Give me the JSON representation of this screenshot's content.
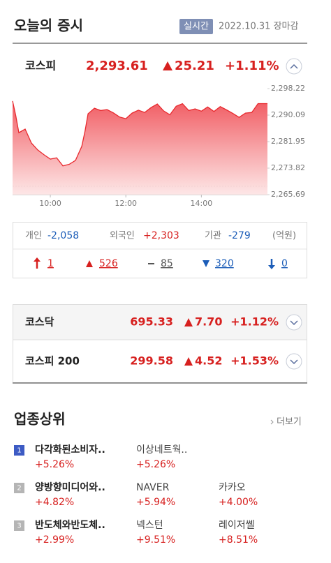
{
  "header": {
    "title": "오늘의 증시",
    "badge": "실시간",
    "date": "2022.10.31 장마감"
  },
  "kospi": {
    "name": "코스피",
    "price": "2,293.61",
    "change": "25.21",
    "rate": "+1.11%"
  },
  "chart_data": {
    "type": "line",
    "color": "#e8292e",
    "x": [
      "09:00",
      "09:05",
      "09:10",
      "09:20",
      "09:30",
      "09:40",
      "09:50",
      "10:00",
      "10:10",
      "10:20",
      "10:30",
      "10:40",
      "10:50",
      "10:55",
      "11:00",
      "11:10",
      "11:20",
      "11:30",
      "11:40",
      "11:50",
      "12:00",
      "12:10",
      "12:20",
      "12:30",
      "12:40",
      "12:50",
      "13:00",
      "13:10",
      "13:20",
      "13:30",
      "13:40",
      "13:50",
      "14:00",
      "14:10",
      "14:20",
      "14:30",
      "14:40",
      "14:50",
      "15:00",
      "15:10",
      "15:20",
      "15:30",
      "15:45"
    ],
    "values": [
      2294.4,
      2290.0,
      2284.7,
      2285.8,
      2281.5,
      2279.4,
      2277.9,
      2276.6,
      2277.0,
      2274.5,
      2275.0,
      2276.2,
      2280.5,
      2285.0,
      2290.5,
      2292.2,
      2291.5,
      2291.8,
      2290.8,
      2289.5,
      2289.0,
      2290.7,
      2291.6,
      2290.9,
      2292.4,
      2293.5,
      2291.4,
      2290.2,
      2292.8,
      2293.6,
      2291.5,
      2292.0,
      2291.3,
      2292.6,
      2291.2,
      2292.7,
      2291.7,
      2290.6,
      2289.4,
      2290.7,
      2290.9,
      2293.61,
      2293.61
    ],
    "xlim": [
      "09:00",
      "15:45"
    ],
    "xticks": [
      "10:00",
      "12:00",
      "14:00"
    ],
    "ylim": [
      2265.69,
      2298.22
    ],
    "yticks": [
      {
        "value": 2265.69,
        "label": "2,265.69"
      },
      {
        "value": 2273.82,
        "label": "2,273.82"
      },
      {
        "value": 2281.95,
        "label": "2,281.95"
      },
      {
        "value": 2290.09,
        "label": "2,290.09"
      },
      {
        "value": 2298.22,
        "label": "2,298.22"
      }
    ]
  },
  "investors": {
    "items": [
      {
        "label": "개인",
        "value": "-2,058"
      },
      {
        "label": "외국인",
        "value": "+2,303"
      },
      {
        "label": "기관",
        "value": "-279"
      }
    ],
    "unit": "(억원)"
  },
  "breadth": [
    "1",
    "526",
    "85",
    "320",
    "0"
  ],
  "indices": [
    {
      "name": "코스닥",
      "price": "695.33",
      "change": "7.70",
      "rate": "+1.12%"
    },
    {
      "name": "코스피 200",
      "price": "299.58",
      "change": "4.52",
      "rate": "+1.53%"
    }
  ],
  "sectors": {
    "title": "업종상위",
    "more": "더보기",
    "rows": [
      {
        "rank": 1,
        "name": "다각화된소비자..",
        "rate": "+5.26%",
        "stocks": [
          {
            "name": "이상네트웍..",
            "rate": "+5.26%"
          }
        ]
      },
      {
        "rank": 2,
        "name": "양방향미디어와..",
        "rate": "+4.82%",
        "stocks": [
          {
            "name": "NAVER",
            "rate": "+5.94%"
          },
          {
            "name": "카카오",
            "rate": "+4.00%"
          }
        ]
      },
      {
        "rank": 3,
        "name": "반도체와반도체..",
        "rate": "+2.99%",
        "stocks": [
          {
            "name": "넥스턴",
            "rate": "+9.51%"
          },
          {
            "name": "레이저쎌",
            "rate": "+8.51%"
          }
        ]
      }
    ]
  }
}
